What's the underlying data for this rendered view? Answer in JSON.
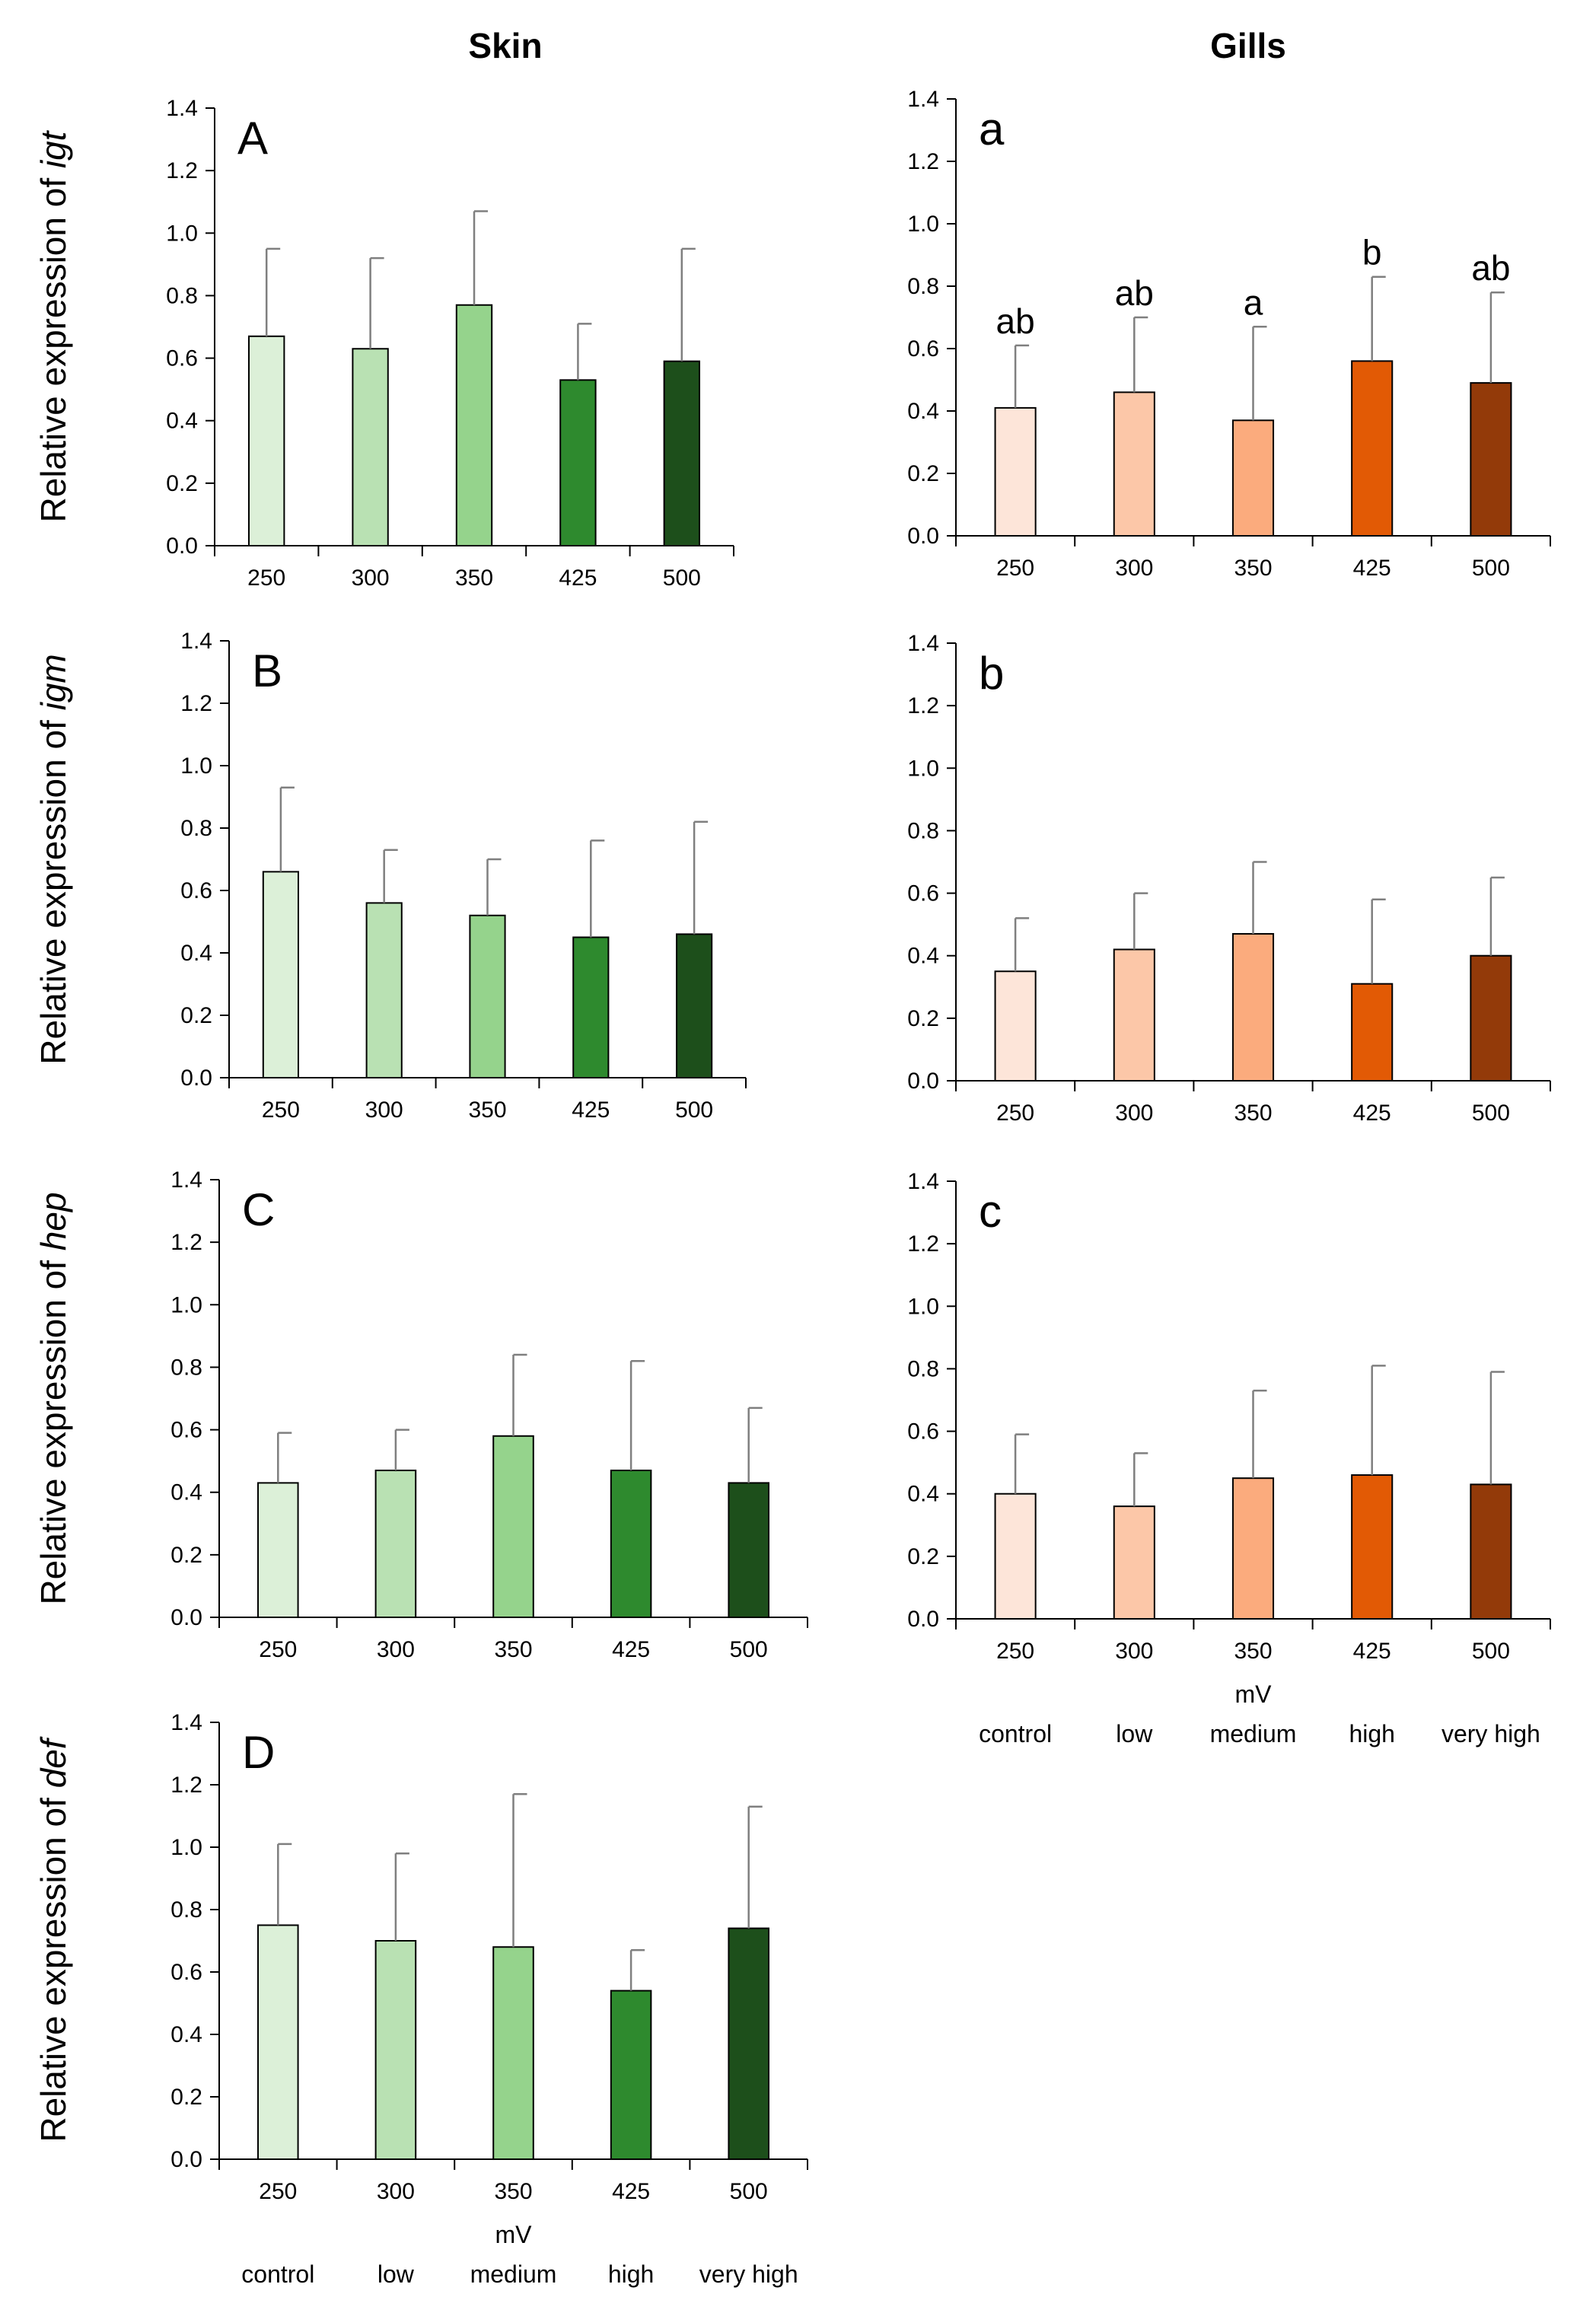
{
  "column_titles": {
    "skin": "Skin",
    "gills": "Gills"
  },
  "colors": {
    "skin": [
      "#dcf0d8",
      "#b9e1b3",
      "#95d38c",
      "#2e8a2e",
      "#1d4f1b"
    ],
    "gills": [
      "#fde5d9",
      "#fcc7a8",
      "#fbab7d",
      "#e25a05",
      "#933a09"
    ],
    "axis": "#000000",
    "error_bar": "#7f7f7f"
  },
  "chart_data": [
    {
      "id": "skin-igt",
      "type": "bar",
      "panel": "A",
      "tissue": "skin",
      "ylabel_prefix": "Relative expression of ",
      "gene": "igt",
      "categories": [
        "250",
        "300",
        "350",
        "425",
        "500"
      ],
      "values": [
        0.67,
        0.63,
        0.77,
        0.53,
        0.59
      ],
      "errors": [
        0.28,
        0.29,
        0.3,
        0.18,
        0.36
      ],
      "ylim": [
        0,
        1.4
      ],
      "yticks": [
        "0.0",
        "0.2",
        "0.4",
        "0.6",
        "0.8",
        "1.0",
        "1.2",
        "1.4"
      ],
      "significance": []
    },
    {
      "id": "gills-igt",
      "type": "bar",
      "panel": "a",
      "tissue": "gills",
      "ylabel_prefix": "",
      "gene": "",
      "categories": [
        "250",
        "300",
        "350",
        "425",
        "500"
      ],
      "values": [
        0.41,
        0.46,
        0.37,
        0.56,
        0.49
      ],
      "errors": [
        0.2,
        0.24,
        0.3,
        0.27,
        0.29
      ],
      "ylim": [
        0,
        1.4
      ],
      "yticks": [
        "0.0",
        "0.2",
        "0.4",
        "0.6",
        "0.8",
        "1.0",
        "1.2",
        "1.4"
      ],
      "significance": [
        "ab",
        "ab",
        "a",
        "b",
        "ab"
      ]
    },
    {
      "id": "skin-igm",
      "type": "bar",
      "panel": "B",
      "tissue": "skin",
      "ylabel_prefix": "Relative expression of ",
      "gene": "igm",
      "categories": [
        "250",
        "300",
        "350",
        "425",
        "500"
      ],
      "values": [
        0.66,
        0.56,
        0.52,
        0.45,
        0.46
      ],
      "errors": [
        0.27,
        0.17,
        0.18,
        0.31,
        0.36
      ],
      "ylim": [
        0,
        1.4
      ],
      "yticks": [
        "0.0",
        "0.2",
        "0.4",
        "0.6",
        "0.8",
        "1.0",
        "1.2",
        "1.4"
      ],
      "significance": []
    },
    {
      "id": "gills-igm",
      "type": "bar",
      "panel": "b",
      "tissue": "gills",
      "ylabel_prefix": "",
      "gene": "",
      "categories": [
        "250",
        "300",
        "350",
        "425",
        "500"
      ],
      "values": [
        0.35,
        0.42,
        0.47,
        0.31,
        0.4
      ],
      "errors": [
        0.17,
        0.18,
        0.23,
        0.27,
        0.25
      ],
      "ylim": [
        0,
        1.4
      ],
      "yticks": [
        "0.0",
        "0.2",
        "0.4",
        "0.6",
        "0.8",
        "1.0",
        "1.2",
        "1.4"
      ],
      "significance": []
    },
    {
      "id": "skin-hep",
      "type": "bar",
      "panel": "C",
      "tissue": "skin",
      "ylabel_prefix": "Relative expression of ",
      "gene": "hep",
      "categories": [
        "250",
        "300",
        "350",
        "425",
        "500"
      ],
      "values": [
        0.43,
        0.47,
        0.58,
        0.47,
        0.43
      ],
      "errors": [
        0.16,
        0.13,
        0.26,
        0.35,
        0.24
      ],
      "ylim": [
        0,
        1.4
      ],
      "yticks": [
        "0.0",
        "0.2",
        "0.4",
        "0.6",
        "0.8",
        "1.0",
        "1.2",
        "1.4"
      ],
      "significance": []
    },
    {
      "id": "gills-hep",
      "type": "bar",
      "panel": "c",
      "tissue": "gills",
      "ylabel_prefix": "",
      "gene": "",
      "categories": [
        "250",
        "300",
        "350",
        "425",
        "500"
      ],
      "values": [
        0.4,
        0.36,
        0.45,
        0.46,
        0.43
      ],
      "errors": [
        0.19,
        0.17,
        0.28,
        0.35,
        0.36
      ],
      "ylim": [
        0,
        1.4
      ],
      "yticks": [
        "0.0",
        "0.2",
        "0.4",
        "0.6",
        "0.8",
        "1.0",
        "1.2",
        "1.4"
      ],
      "significance": [],
      "xlabel": "mV",
      "group_labels": [
        "control",
        "low",
        "medium",
        "high",
        "very high"
      ]
    },
    {
      "id": "skin-def",
      "type": "bar",
      "panel": "D",
      "tissue": "skin",
      "ylabel_prefix": "Relative expression of ",
      "gene": "def",
      "categories": [
        "250",
        "300",
        "350",
        "425",
        "500"
      ],
      "values": [
        0.75,
        0.7,
        0.68,
        0.54,
        0.74
      ],
      "errors": [
        0.26,
        0.28,
        0.49,
        0.13,
        0.39
      ],
      "ylim": [
        0,
        1.4
      ],
      "yticks": [
        "0.0",
        "0.2",
        "0.4",
        "0.6",
        "0.8",
        "1.0",
        "1.2",
        "1.4"
      ],
      "significance": [],
      "xlabel": "mV",
      "group_labels": [
        "control",
        "low",
        "medium",
        "high",
        "very high"
      ]
    }
  ]
}
